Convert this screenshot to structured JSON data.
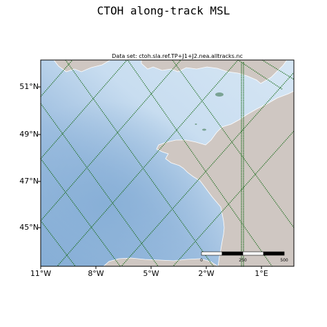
{
  "title": "CTOH along-track MSL",
  "subtitle": "Data set: ctoh.sla.ref.TP+J1+J2.nea.alltracks.nc",
  "lat_labels": [
    "51°N",
    "49°N",
    "47°N",
    "45°N"
  ],
  "lon_labels": [
    "11°W",
    "8°W",
    "5°W",
    "2°W",
    "1°E"
  ],
  "scale_bar": {
    "labels": [
      "0",
      "250",
      "500"
    ]
  },
  "colors": {
    "land": "#cfc7c2",
    "ocean_light": "#cfe0f1",
    "ocean_dark": "#8bb0d6",
    "track": "#1a6b1a"
  }
}
